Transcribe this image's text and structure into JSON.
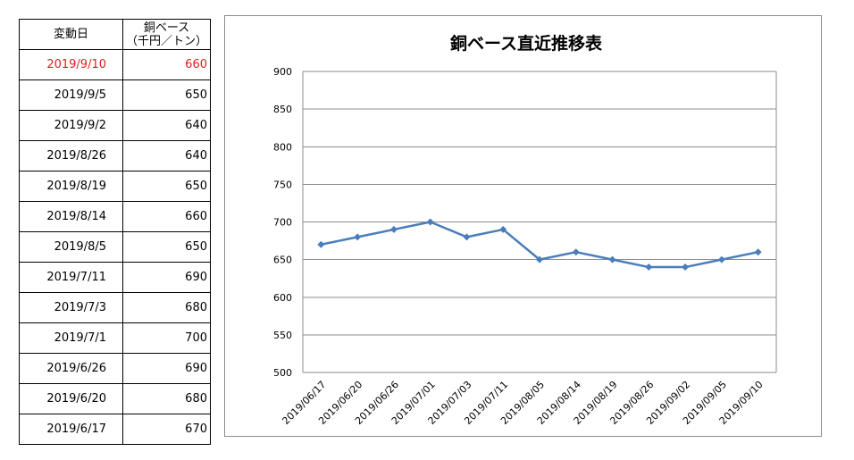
{
  "table": {
    "header_date": "変動日",
    "header_value_line1": "銅ベース",
    "header_value_line2": "（千円／トン）",
    "rows": [
      {
        "date": "2019/9/10",
        "value": "660"
      },
      {
        "date": "2019/9/5",
        "value": "650"
      },
      {
        "date": "2019/9/2",
        "value": "640"
      },
      {
        "date": "2019/8/26",
        "value": "640"
      },
      {
        "date": "2019/8/19",
        "value": "650"
      },
      {
        "date": "2019/8/14",
        "value": "660"
      },
      {
        "date": "2019/8/5",
        "value": "650"
      },
      {
        "date": "2019/7/11",
        "value": "690"
      },
      {
        "date": "2019/7/3",
        "value": "680"
      },
      {
        "date": "2019/7/1",
        "value": "700"
      },
      {
        "date": "2019/6/26",
        "value": "690"
      },
      {
        "date": "2019/6/20",
        "value": "680"
      },
      {
        "date": "2019/6/17",
        "value": "670"
      }
    ]
  },
  "colors": {
    "latest_text": "#e0201c",
    "line": "#4a7ebb",
    "grid": "#8c8c8c"
  },
  "chart_data": {
    "type": "line",
    "title": "銅ベース直近推移表",
    "xlabel": "",
    "ylabel": "",
    "ylim": [
      500,
      900
    ],
    "yticks": [
      500,
      550,
      600,
      650,
      700,
      750,
      800,
      850,
      900
    ],
    "grid": true,
    "legend": "none",
    "marker": "diamond",
    "categories": [
      "2019/06/17",
      "2019/06/20",
      "2019/06/26",
      "2019/07/01",
      "2019/07/03",
      "2019/07/11",
      "2019/08/05",
      "2019/08/14",
      "2019/08/19",
      "2019/08/26",
      "2019/09/02",
      "2019/09/05",
      "2019/09/10"
    ],
    "series": [
      {
        "values": [
          670,
          680,
          690,
          700,
          680,
          690,
          650,
          660,
          650,
          640,
          640,
          650,
          660
        ]
      }
    ]
  }
}
